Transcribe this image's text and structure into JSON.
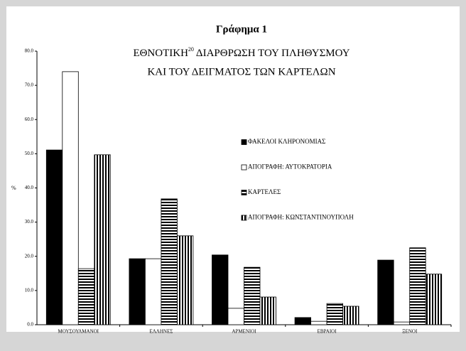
{
  "chart_data": {
    "type": "bar",
    "title": "Γράφημα 1",
    "subtitle": {
      "lead": "ΕΘΝΟΤΙΚΗ",
      "footnote": "20",
      "rest": "ΔΙΑΡΘΡΩΣΗ ΤΟΥ ΠΛΗΘΥΣΜΟΥ",
      "line2": "ΚΑΙ ΤΟΥ ΔΕΙΓΜΑΤΟΣ ΤΩΝ ΚΑΡΤΕΛΩΝ"
    },
    "y_label": "%",
    "categories": [
      "ΜΟΥΣΟΥΛΜΑΝΟΙ",
      "ΕΛΛΗΝΕΣ",
      "ΑΡΜΕΝΙΟΙ",
      "ΕΒΡΑΙΟΙ",
      "ΞΕΝΟΙ"
    ],
    "series": [
      {
        "name": "ΦΑΚΕΛΟΙ ΚΛΗΡΟΝΟΜΙΑΣ",
        "color": "#000000",
        "pattern": "solid",
        "values": [
          51.1,
          19.3,
          20.4,
          2.1,
          18.9
        ]
      },
      {
        "name": "ΑΠΟΓΡΑΦΗ: ΑΥΤΟΚΡΑΤΟΡΙΑ",
        "color": "#ffffff",
        "pattern": "solid",
        "values": [
          74.0,
          19.3,
          4.8,
          1.0,
          0.8
        ]
      },
      {
        "name": "ΚΑΡΤΕΛΕΣ",
        "color": "#000000",
        "pattern": "horizontal",
        "values": [
          16.4,
          36.8,
          16.8,
          6.2,
          22.5
        ]
      },
      {
        "name": "ΑΠΟΓΡΑΦΗ: ΚΩΝΣΤΑΝΤΙΝΟΥΠΟΛΗ",
        "color": "#000000",
        "pattern": "vertical",
        "values": [
          49.7,
          26.0,
          8.1,
          5.4,
          14.8
        ]
      }
    ],
    "ylim": [
      0,
      80
    ],
    "yticks": [
      {
        "value": 0,
        "label": "0.0"
      },
      {
        "value": 10,
        "label": "10.0"
      },
      {
        "value": 20,
        "label": "20.0"
      },
      {
        "value": 30,
        "label": "30.0"
      },
      {
        "value": 40,
        "label": "40.0"
      },
      {
        "value": 50,
        "label": "50.0"
      },
      {
        "value": 60,
        "label": "60.0"
      },
      {
        "value": 70,
        "label": "70.0"
      },
      {
        "value": 80,
        "label": "80.0"
      }
    ],
    "grid": false
  }
}
